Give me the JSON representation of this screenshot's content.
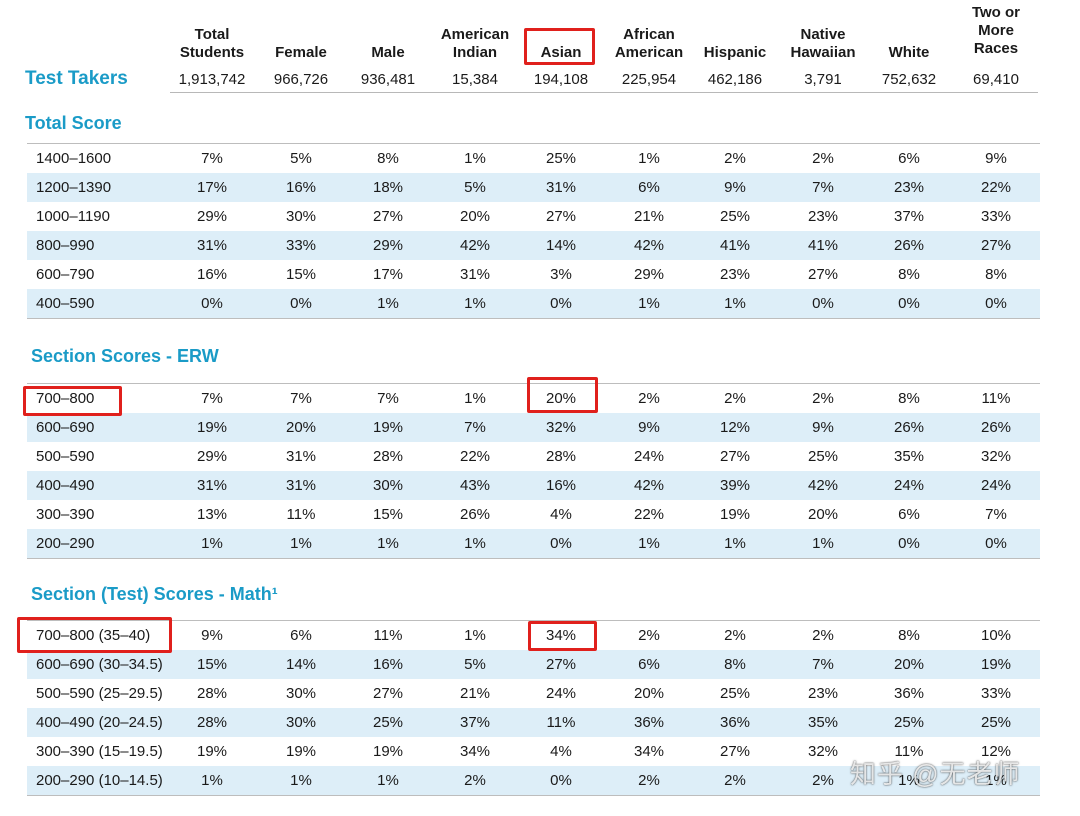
{
  "columns": [
    {
      "key": "total",
      "label": [
        "Total",
        "Students"
      ]
    },
    {
      "key": "female",
      "label": [
        "Female"
      ]
    },
    {
      "key": "male",
      "label": [
        "Male"
      ]
    },
    {
      "key": "american_indian",
      "label": [
        "American",
        "Indian"
      ]
    },
    {
      "key": "asian",
      "label": [
        "Asian"
      ]
    },
    {
      "key": "african_american",
      "label": [
        "African",
        "American"
      ]
    },
    {
      "key": "hispanic",
      "label": [
        "Hispanic"
      ]
    },
    {
      "key": "native_hawaiian",
      "label": [
        "Native",
        "Hawaiian"
      ]
    },
    {
      "key": "white",
      "label": [
        "White"
      ]
    },
    {
      "key": "two_or_more",
      "label": [
        "Two or",
        "More",
        "Races"
      ]
    }
  ],
  "test_takers": {
    "label": "Test Takers",
    "values": [
      "1,913,742",
      "966,726",
      "936,481",
      "15,384",
      "194,108",
      "225,954",
      "462,186",
      "3,791",
      "752,632",
      "69,410"
    ]
  },
  "sections": [
    {
      "title": "Total Score",
      "rows": [
        {
          "label": "1400–1600",
          "values": [
            "7%",
            "5%",
            "8%",
            "1%",
            "25%",
            "1%",
            "2%",
            "2%",
            "6%",
            "9%"
          ]
        },
        {
          "label": "1200–1390",
          "values": [
            "17%",
            "16%",
            "18%",
            "5%",
            "31%",
            "6%",
            "9%",
            "7%",
            "23%",
            "22%"
          ]
        },
        {
          "label": "1000–1190",
          "values": [
            "29%",
            "30%",
            "27%",
            "20%",
            "27%",
            "21%",
            "25%",
            "23%",
            "37%",
            "33%"
          ]
        },
        {
          "label": "800–990",
          "values": [
            "31%",
            "33%",
            "29%",
            "42%",
            "14%",
            "42%",
            "41%",
            "41%",
            "26%",
            "27%"
          ]
        },
        {
          "label": "600–790",
          "values": [
            "16%",
            "15%",
            "17%",
            "31%",
            "3%",
            "29%",
            "23%",
            "27%",
            "8%",
            "8%"
          ]
        },
        {
          "label": "400–590",
          "values": [
            "0%",
            "0%",
            "1%",
            "1%",
            "0%",
            "1%",
            "1%",
            "0%",
            "0%",
            "0%"
          ]
        }
      ]
    },
    {
      "title": "Section Scores - ERW",
      "rows": [
        {
          "label": "700–800",
          "values": [
            "7%",
            "7%",
            "7%",
            "1%",
            "20%",
            "2%",
            "2%",
            "2%",
            "8%",
            "11%"
          ]
        },
        {
          "label": "600–690",
          "values": [
            "19%",
            "20%",
            "19%",
            "7%",
            "32%",
            "9%",
            "12%",
            "9%",
            "26%",
            "26%"
          ]
        },
        {
          "label": "500–590",
          "values": [
            "29%",
            "31%",
            "28%",
            "22%",
            "28%",
            "24%",
            "27%",
            "25%",
            "35%",
            "32%"
          ]
        },
        {
          "label": "400–490",
          "values": [
            "31%",
            "31%",
            "30%",
            "43%",
            "16%",
            "42%",
            "39%",
            "42%",
            "24%",
            "24%"
          ]
        },
        {
          "label": "300–390",
          "values": [
            "13%",
            "11%",
            "15%",
            "26%",
            "4%",
            "22%",
            "19%",
            "20%",
            "6%",
            "7%"
          ]
        },
        {
          "label": "200–290",
          "values": [
            "1%",
            "1%",
            "1%",
            "1%",
            "0%",
            "1%",
            "1%",
            "1%",
            "0%",
            "0%"
          ]
        }
      ]
    },
    {
      "title": "Section (Test) Scores - Math¹",
      "rows": [
        {
          "label": "700–800 (35–40)",
          "values": [
            "9%",
            "6%",
            "11%",
            "1%",
            "34%",
            "2%",
            "2%",
            "2%",
            "8%",
            "10%"
          ]
        },
        {
          "label": "600–690 (30–34.5)",
          "values": [
            "15%",
            "14%",
            "16%",
            "5%",
            "27%",
            "6%",
            "8%",
            "7%",
            "20%",
            "19%"
          ]
        },
        {
          "label": "500–590 (25–29.5)",
          "values": [
            "28%",
            "30%",
            "27%",
            "21%",
            "24%",
            "20%",
            "25%",
            "23%",
            "36%",
            "33%"
          ]
        },
        {
          "label": "400–490 (20–24.5)",
          "values": [
            "28%",
            "30%",
            "25%",
            "37%",
            "11%",
            "36%",
            "36%",
            "35%",
            "25%",
            "25%"
          ]
        },
        {
          "label": "300–390 (15–19.5)",
          "values": [
            "19%",
            "19%",
            "19%",
            "34%",
            "4%",
            "34%",
            "27%",
            "32%",
            "11%",
            "12%"
          ]
        },
        {
          "label": "200–290 (10–14.5)",
          "values": [
            "1%",
            "1%",
            "1%",
            "2%",
            "0%",
            "2%",
            "2%",
            "2%",
            "1%",
            "1%"
          ]
        }
      ]
    }
  ],
  "watermark": "知乎 @无老师",
  "colors": {
    "accent": "#1a9bc7",
    "row_shade": "#ddeef8",
    "highlight": "#e0201c"
  }
}
